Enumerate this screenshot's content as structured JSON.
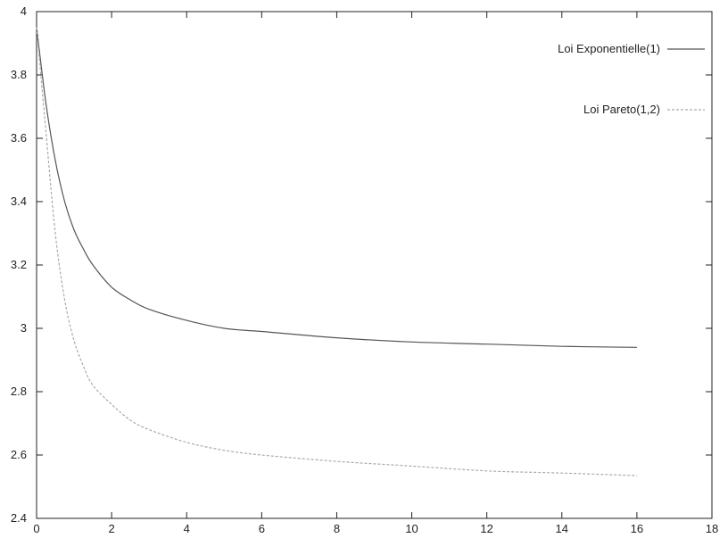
{
  "chart_data": {
    "type": "line",
    "title": "",
    "xlabel": "",
    "ylabel": "",
    "xlim": [
      0,
      18
    ],
    "ylim": [
      2.4,
      4
    ],
    "xticks": [
      "0",
      "2",
      "4",
      "6",
      "8",
      "10",
      "12",
      "14",
      "16",
      "18"
    ],
    "yticks": [
      "2.4",
      "2.6",
      "2.8",
      "3",
      "3.2",
      "3.4",
      "3.6",
      "3.8",
      "4"
    ],
    "grid": false,
    "legend": "top-right",
    "series": [
      {
        "name": "Loi Exponentielle(1)",
        "style": "solid",
        "color": "#555555",
        "x": [
          0,
          0.25,
          0.5,
          0.75,
          1,
          1.25,
          1.5,
          2,
          2.5,
          3,
          4,
          5,
          6,
          8,
          10,
          12,
          14,
          16
        ],
        "y": [
          3.95,
          3.71,
          3.53,
          3.4,
          3.31,
          3.25,
          3.2,
          3.13,
          3.09,
          3.06,
          3.025,
          3.0,
          2.99,
          2.97,
          2.957,
          2.95,
          2.943,
          2.94
        ]
      },
      {
        "name": "Loi Pareto(1,2)",
        "style": "dashed",
        "color": "#aaaaaa",
        "x": [
          0,
          0.25,
          0.5,
          0.75,
          1,
          1.25,
          1.5,
          2,
          2.5,
          3,
          4,
          5,
          6,
          8,
          10,
          12,
          14,
          16
        ],
        "y": [
          3.95,
          3.62,
          3.3,
          3.09,
          2.96,
          2.88,
          2.82,
          2.76,
          2.71,
          2.68,
          2.64,
          2.615,
          2.6,
          2.58,
          2.565,
          2.55,
          2.543,
          2.535
        ]
      }
    ]
  }
}
